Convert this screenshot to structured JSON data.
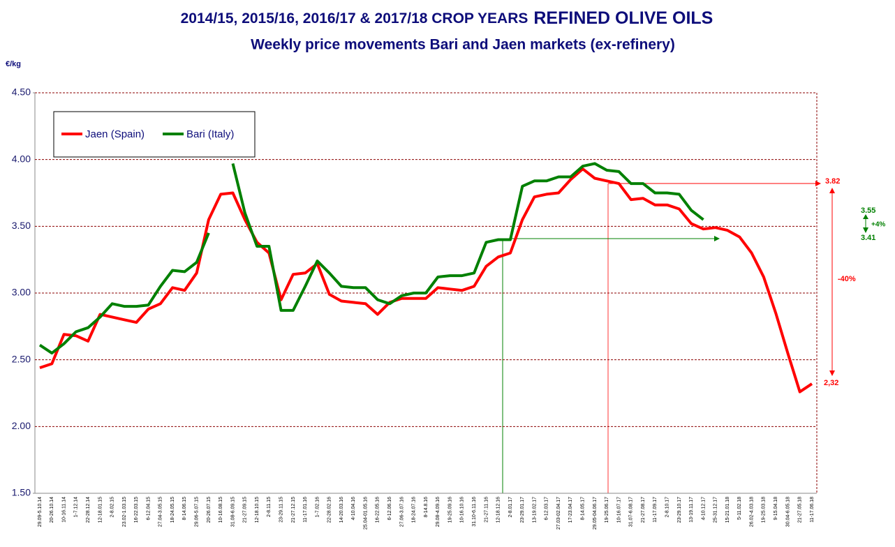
{
  "chart_data": {
    "type": "line",
    "title": [
      "2014/15,  2015/16, 2016/17  & 2017/18 CROP YEARS",
      "REFINED OLIVE OILS"
    ],
    "subtitle": "Weekly  price movements Bari  and Jaen markets (ex-refinery)",
    "y_label": "€/kg",
    "categories": [
      "29.09-5.10.14",
      "20-26.10.14",
      "10-16.11.14",
      "1-7.12.14",
      "22-28.12.14",
      "12-18.01.15",
      "2-8.02.15",
      "23.02-1.03.15",
      "16-22.03.15",
      "6-12.04.15",
      "27.04-3.05.15",
      "18-24.05.15",
      "8-14.06.15",
      "29.06-5.07.15",
      "20-26.07.15",
      "10-16.08.15",
      "31.08-6.09.15",
      "21-27.09.15",
      "12-18.10.15",
      "2-8.11.15",
      "23-29.11.15",
      "21-27.12.15",
      "11-17.01.16",
      "1-7.02.16",
      "22-28.02.16",
      "14-20.03.16",
      "4-10.04.16",
      "25.04-01.05.16",
      "16-22.05.16",
      "6-12.06.16",
      "27.06-3.07.16",
      "18-24.07.16",
      "8-14.8.16",
      "29.08-4.09.16",
      "19-25.09.16",
      "10-16.10.16",
      "31.10-6.11.16",
      "21-27.11.16",
      "12-18.12.16",
      "2-8.01.17",
      "23-29.01.17",
      "13-19.02.17",
      "6-12.03.17",
      "27.03-02.04.17",
      "17-23.04.17",
      "8-14.05.17",
      "29.05-04.06.17",
      "19-25.06.17",
      "10-16.07.17",
      "31.07-6.08.17",
      "21-27.08.17",
      "11-17.09.17",
      "2-8.10.17",
      "23-29.10.17",
      "13-19.11.17",
      "4-10.12.17",
      "25-31.12.17",
      "15-21.01.18",
      "5-11.02.18",
      "26.02-4.03.18",
      "19-25.03.18",
      "9-15.04.18",
      "30.04-6.05.18",
      "21-27.05.18",
      "11-17.06.18"
    ],
    "series": [
      {
        "name": "Jaen (Spain)",
        "color": "#ff0000",
        "values": [
          2.44,
          2.47,
          2.69,
          2.68,
          2.64,
          2.84,
          2.82,
          2.8,
          2.78,
          2.88,
          2.92,
          3.04,
          3.02,
          3.15,
          3.55,
          3.74,
          3.75,
          3.55,
          3.38,
          3.3,
          2.95,
          3.14,
          3.15,
          3.22,
          2.99,
          2.94,
          2.93,
          2.92,
          2.84,
          2.93,
          2.96,
          2.96,
          2.96,
          3.04,
          3.03,
          3.02,
          3.05,
          3.2,
          3.27,
          3.3,
          3.55,
          3.72,
          3.74,
          3.75,
          3.85,
          3.93,
          3.86,
          3.84,
          3.82,
          3.7,
          3.71,
          3.66,
          3.66,
          3.63,
          3.52,
          3.48,
          3.49,
          3.47,
          3.42,
          3.3,
          3.12,
          2.85,
          2.55,
          2.26,
          2.32
        ]
      },
      {
        "name": "Bari (Italy)",
        "color": "#008000",
        "values": [
          2.61,
          2.55,
          2.62,
          2.71,
          2.74,
          2.82,
          2.92,
          2.9,
          2.9,
          2.91,
          3.05,
          3.17,
          3.16,
          3.23,
          3.45,
          null,
          3.97,
          3.6,
          3.35,
          3.35,
          2.87,
          2.87,
          3.05,
          3.24,
          3.15,
          3.05,
          3.04,
          3.04,
          2.95,
          2.92,
          2.98,
          3.0,
          3.0,
          3.12,
          3.13,
          3.13,
          3.15,
          3.38,
          3.4,
          3.4,
          3.8,
          3.84,
          3.84,
          3.87,
          3.87,
          3.95,
          3.97,
          3.92,
          3.91,
          3.82,
          3.82,
          3.75,
          3.75,
          3.74,
          3.62,
          3.55,
          null,
          null,
          null,
          null,
          null,
          null,
          null,
          null,
          null
        ]
      }
    ],
    "ylim": [
      1.5,
      4.5
    ],
    "yticks": [
      {
        "value": 1.5,
        "label": "1.50"
      },
      {
        "value": 2,
        "label": "2.00"
      },
      {
        "value": 2.5,
        "label": "2.50"
      },
      {
        "value": 3,
        "label": "3.00"
      },
      {
        "value": 3.5,
        "label": "3.50"
      },
      {
        "value": 4,
        "label": "4.00"
      },
      {
        "value": 4.5,
        "label": "4.50"
      }
    ],
    "grid": true,
    "legend": "upper left",
    "annotations": [
      {
        "text": "3.82",
        "color": "#ff0000"
      },
      {
        "text": "3.55",
        "color": "#008000"
      },
      {
        "text": "+4%",
        "color": "#008000"
      },
      {
        "text": "3.41",
        "color": "#008000"
      },
      {
        "text": "-40%",
        "color": "#ff0000"
      },
      {
        "text": "2,32",
        "color": "#ff0000"
      }
    ]
  }
}
